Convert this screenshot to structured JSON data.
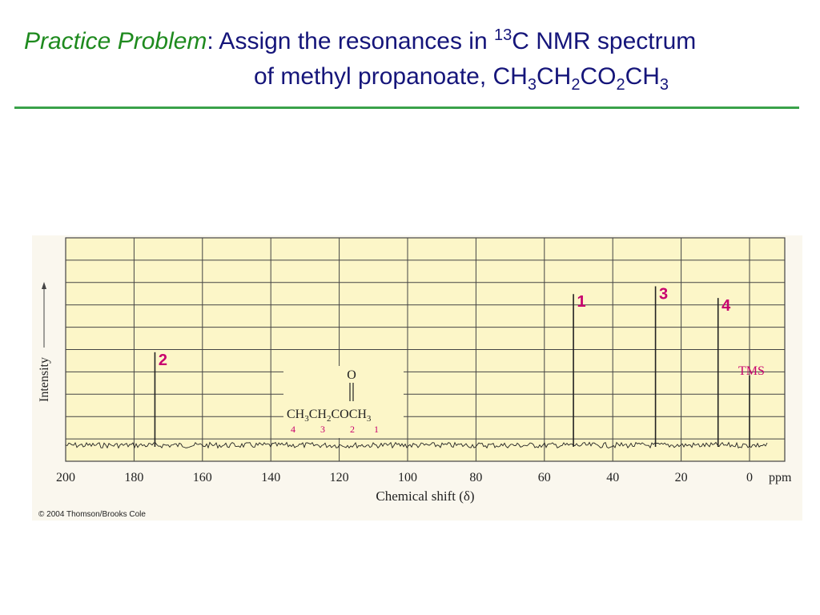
{
  "slide": {
    "title_prefix": "Practice Problem",
    "title_colon": ":  Assign the resonances in ",
    "title_sup": "13",
    "title_after_sup": "C NMR spectrum",
    "line2_start": "of methyl propanoate, CH",
    "line2_s1": "3",
    "line2_t1": "CH",
    "line2_s2": "2",
    "line2_t2": "CO",
    "line2_s3": "2",
    "line2_t3": "CH",
    "line2_s4": "3",
    "copyright": "© 2004 Thomson/Brooks Cole"
  },
  "colors": {
    "title": "#15157a",
    "title_emphasis": "#1e8a1e",
    "rule": "#3aa24a",
    "plot_background": "#fcf6c8",
    "grid": "#444444",
    "spectrum": "#222222",
    "peak_labels": "#c8006e",
    "tms_label": "#c8006e"
  },
  "chart_data": {
    "type": "line",
    "title": "",
    "xlabel": "Chemical shift (δ)",
    "ylabel": "Intensity",
    "x_unit": "ppm",
    "xlim": [
      200,
      -5
    ],
    "x_reversed": true,
    "x_ticks": [
      200,
      180,
      160,
      140,
      120,
      100,
      80,
      60,
      40,
      20,
      0
    ],
    "x_tick_labels": [
      "200",
      "180",
      "160",
      "140",
      "120",
      "100",
      "80",
      "60",
      "40",
      "20",
      "0"
    ],
    "grid": true,
    "ylim": [
      0,
      10
    ],
    "baseline": 0,
    "peaks": [
      {
        "label": "2",
        "shift": 173.9,
        "intensity": 4.8
      },
      {
        "label": "1",
        "shift": 51.5,
        "intensity": 7.8
      },
      {
        "label": "3",
        "shift": 27.5,
        "intensity": 8.2
      },
      {
        "label": "4",
        "shift": 9.2,
        "intensity": 7.6
      },
      {
        "label": "TMS",
        "shift": 0,
        "intensity": 3.6
      }
    ],
    "structure": {
      "oxygen": "O",
      "formula_parts": [
        "CH",
        "3",
        "CH",
        "2",
        "COCH",
        "3"
      ],
      "carbon_numbers": [
        "4",
        "3",
        "2",
        "1"
      ]
    }
  }
}
